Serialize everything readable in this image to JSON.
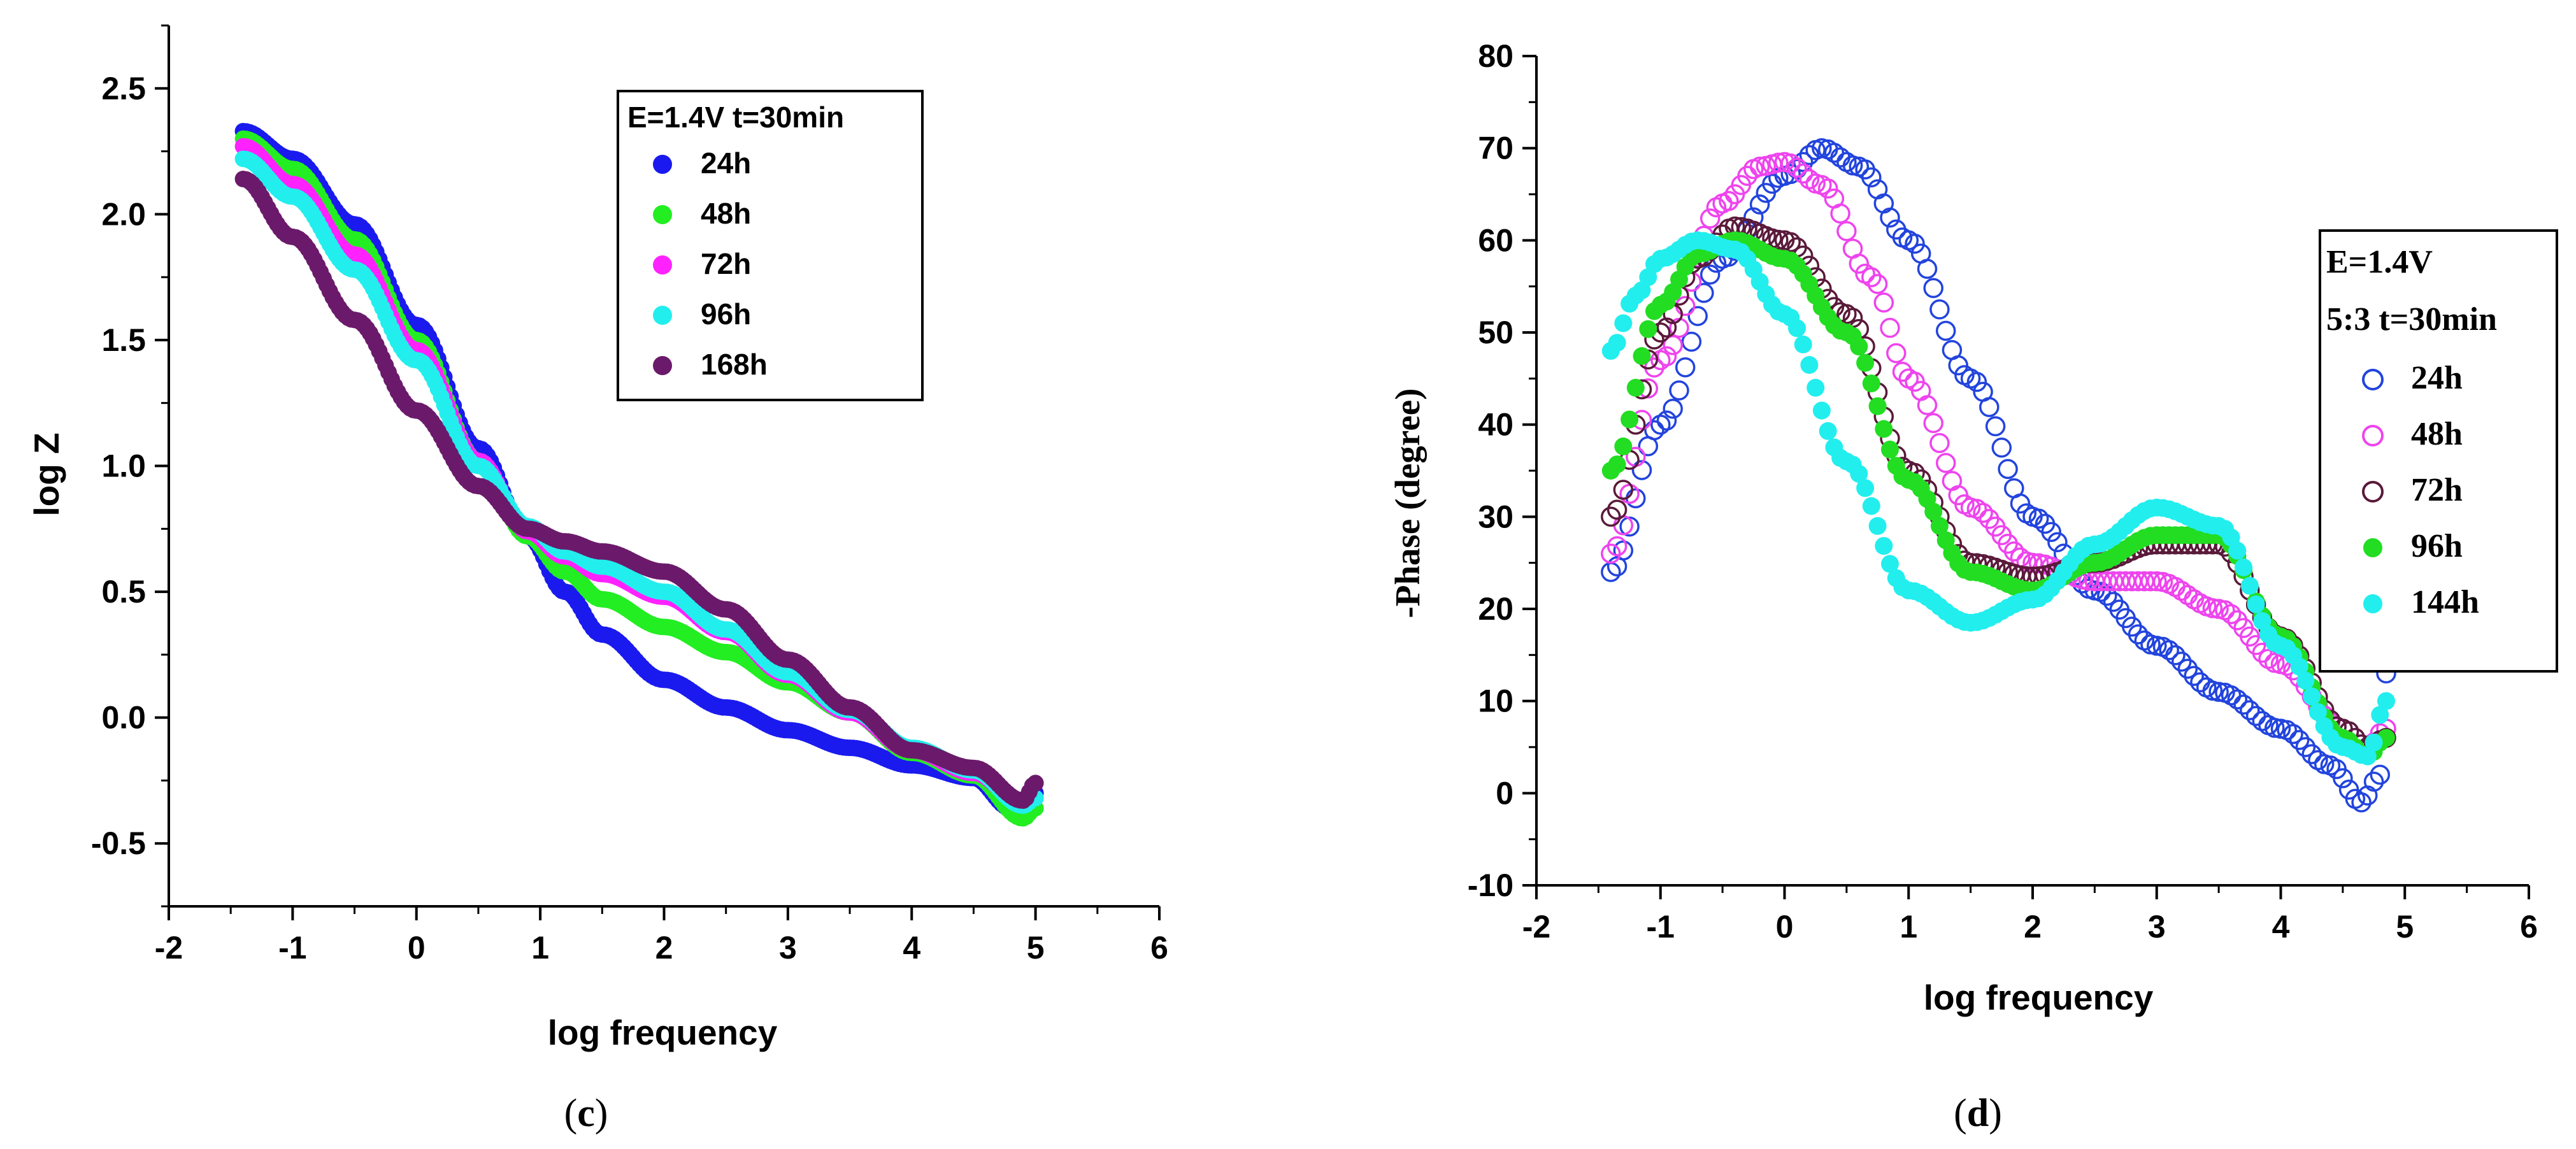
{
  "chart_data": [
    {
      "type": "scatter",
      "panel_label_open": "(",
      "panel_label_letter": "c",
      "panel_label_close": ")",
      "xlabel": "log frequency",
      "ylabel": "log Z",
      "xlim": [
        -2,
        6
      ],
      "ylim": [
        -0.75,
        2.75
      ],
      "xticks": [
        "-2",
        "-1",
        "0",
        "1",
        "2",
        "3",
        "4",
        "5",
        "6"
      ],
      "yticks": [
        "-0.5",
        "0.0",
        "0.5",
        "1.0",
        "1.5",
        "2.0",
        "2.5"
      ],
      "legend_title": "E=1.4V t=30min",
      "legend_position": "top-right",
      "marker": "filled",
      "series": [
        {
          "name": "24h",
          "color": "#1a1aee",
          "x": [
            -1.4,
            -1.0,
            -0.5,
            0.0,
            0.5,
            0.9,
            1.2,
            1.5,
            2.0,
            2.5,
            3.0,
            3.5,
            4.0,
            4.5,
            4.8,
            5.0
          ],
          "y": [
            2.33,
            2.22,
            1.96,
            1.56,
            1.07,
            0.72,
            0.5,
            0.33,
            0.15,
            0.04,
            -0.05,
            -0.12,
            -0.19,
            -0.24,
            -0.36,
            -0.3
          ]
        },
        {
          "name": "48h",
          "color": "#22ee22",
          "x": [
            -1.4,
            -1.0,
            -0.5,
            0.0,
            0.5,
            0.9,
            1.2,
            1.5,
            2.0,
            2.5,
            3.0,
            3.5,
            4.0,
            4.5,
            4.9,
            5.0
          ],
          "y": [
            2.3,
            2.18,
            1.9,
            1.5,
            1.02,
            0.72,
            0.58,
            0.47,
            0.36,
            0.26,
            0.14,
            0.02,
            -0.14,
            -0.23,
            -0.4,
            -0.36
          ]
        },
        {
          "name": "72h",
          "color": "#ff22ff",
          "x": [
            -1.4,
            -1.0,
            -0.5,
            0.0,
            0.5,
            0.9,
            1.2,
            1.5,
            2.0,
            2.5,
            3.0,
            3.5,
            4.0,
            4.5,
            4.9,
            5.0
          ],
          "y": [
            2.27,
            2.12,
            1.84,
            1.46,
            1.02,
            0.74,
            0.64,
            0.57,
            0.48,
            0.34,
            0.17,
            0.02,
            -0.13,
            -0.22,
            -0.34,
            -0.32
          ]
        },
        {
          "name": "96h",
          "color": "#22eeee",
          "x": [
            -1.4,
            -1.0,
            -0.5,
            0.0,
            0.5,
            0.9,
            1.2,
            1.5,
            2.0,
            2.5,
            3.0,
            3.5,
            4.0,
            4.5,
            4.9,
            5.0
          ],
          "y": [
            2.22,
            2.07,
            1.78,
            1.42,
            1.0,
            0.76,
            0.66,
            0.6,
            0.5,
            0.35,
            0.18,
            0.03,
            -0.12,
            -0.21,
            -0.35,
            -0.32
          ]
        },
        {
          "name": "168h",
          "color": "#6b1a6b",
          "x": [
            -1.4,
            -1.0,
            -0.5,
            0.0,
            0.5,
            0.9,
            1.2,
            1.5,
            2.0,
            2.5,
            3.0,
            3.5,
            4.0,
            4.5,
            4.9,
            5.0
          ],
          "y": [
            2.14,
            1.91,
            1.58,
            1.22,
            0.92,
            0.75,
            0.7,
            0.66,
            0.58,
            0.43,
            0.23,
            0.04,
            -0.13,
            -0.2,
            -0.33,
            -0.26
          ]
        }
      ]
    },
    {
      "type": "scatter",
      "panel_label_open": "(",
      "panel_label_letter": "d",
      "panel_label_close": ")",
      "xlabel": "log frequency",
      "ylabel": "-Phase (degree)",
      "xlim": [
        -2,
        6
      ],
      "ylim": [
        -10,
        80
      ],
      "xticks": [
        "-2",
        "-1",
        "0",
        "1",
        "2",
        "3",
        "4",
        "5",
        "6"
      ],
      "yticks": [
        "-10",
        "0",
        "10",
        "20",
        "30",
        "40",
        "50",
        "60",
        "70",
        "80"
      ],
      "legend_title_line1": "E=1.4V",
      "legend_title_line2": "5:3 t=30min",
      "legend_position": "right",
      "series": [
        {
          "name": "24h",
          "color": "#2244dd",
          "marker": "open",
          "x": [
            -1.4,
            -1.0,
            -0.5,
            0.0,
            0.3,
            0.6,
            1.0,
            1.5,
            2.0,
            2.5,
            3.0,
            3.5,
            4.0,
            4.4,
            4.65,
            4.8,
            4.85
          ],
          "y": [
            24,
            40,
            58,
            67,
            70,
            68,
            60,
            45,
            30,
            22,
            16,
            11,
            7,
            3,
            -1,
            2,
            13
          ]
        },
        {
          "name": "48h",
          "color": "#ee44ee",
          "marker": "open",
          "x": [
            -1.4,
            -1.0,
            -0.5,
            -0.2,
            0.0,
            0.3,
            0.7,
            1.0,
            1.5,
            2.0,
            2.5,
            3.0,
            3.5,
            4.0,
            4.5,
            4.7,
            4.85
          ],
          "y": [
            26,
            47,
            64,
            68,
            68.5,
            66,
            56,
            45,
            31,
            25,
            23,
            23,
            20,
            14,
            7,
            5,
            7
          ]
        },
        {
          "name": "72h",
          "color": "#5a1a3a",
          "marker": "open",
          "x": [
            -1.4,
            -1.0,
            -0.7,
            -0.4,
            0.0,
            0.5,
            1.0,
            1.5,
            2.0,
            2.5,
            3.0,
            3.5,
            4.0,
            4.5,
            4.7,
            4.85
          ],
          "y": [
            30,
            50,
            58,
            61.5,
            60,
            52,
            35,
            25,
            23.5,
            25,
            27,
            27,
            17,
            7,
            5,
            6
          ]
        },
        {
          "name": "96h",
          "color": "#22dd22",
          "marker": "filled",
          "x": [
            -1.4,
            -1.0,
            -0.7,
            -0.4,
            0.0,
            0.5,
            1.0,
            1.5,
            2.0,
            2.5,
            3.0,
            3.5,
            4.0,
            4.5,
            4.7,
            4.85
          ],
          "y": [
            35,
            53,
            58.5,
            60,
            58,
            50,
            34,
            24,
            22,
            25,
            28,
            28,
            17,
            6,
            4,
            6
          ]
        },
        {
          "name": "144h",
          "color": "#22eeee",
          "marker": "filled",
          "x": [
            -1.4,
            -1.2,
            -1.0,
            -0.7,
            -0.4,
            0.0,
            0.5,
            1.0,
            1.5,
            2.0,
            2.5,
            3.0,
            3.5,
            4.0,
            4.5,
            4.7,
            4.85
          ],
          "y": [
            48,
            54,
            58,
            60,
            59,
            52,
            36,
            22,
            18.5,
            21,
            27,
            31,
            29,
            16,
            5,
            4,
            10
          ]
        }
      ]
    }
  ]
}
